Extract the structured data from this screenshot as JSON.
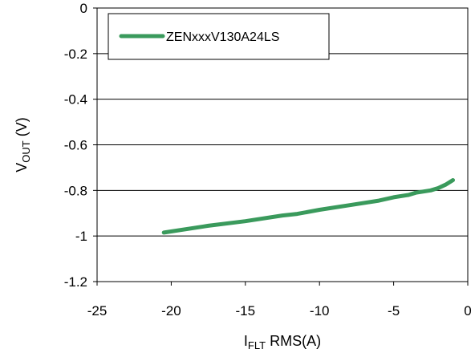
{
  "chart_data": {
    "type": "line",
    "xlabel": {
      "main": "I",
      "sub": "FLT",
      "rest": " RMS(A)"
    },
    "ylabel": {
      "main": "V",
      "sub": "OUT",
      "rest": " (V)"
    },
    "xlim": [
      -25,
      0
    ],
    "ylim": [
      -1.2,
      0
    ],
    "x_ticks": [
      -25,
      -20,
      -15,
      -10,
      -5,
      0
    ],
    "y_ticks": [
      0,
      -0.2,
      -0.4,
      -0.6,
      -0.8,
      -1,
      -1.2
    ],
    "grid": "horizontal",
    "legend_placement": "top-left",
    "series": [
      {
        "name": "ZENxxxV130A24LS",
        "color": "#3a9a5c",
        "points": [
          [
            -20.5,
            -0.985
          ],
          [
            -17.5,
            -0.955
          ],
          [
            -15,
            -0.935
          ],
          [
            -12.5,
            -0.91
          ],
          [
            -11.5,
            -0.903
          ],
          [
            -10,
            -0.885
          ],
          [
            -8,
            -0.865
          ],
          [
            -6,
            -0.845
          ],
          [
            -5,
            -0.83
          ],
          [
            -4,
            -0.82
          ],
          [
            -3.5,
            -0.81
          ],
          [
            -2.5,
            -0.8
          ],
          [
            -2,
            -0.79
          ],
          [
            -1.5,
            -0.775
          ],
          [
            -1,
            -0.755
          ]
        ]
      }
    ]
  }
}
